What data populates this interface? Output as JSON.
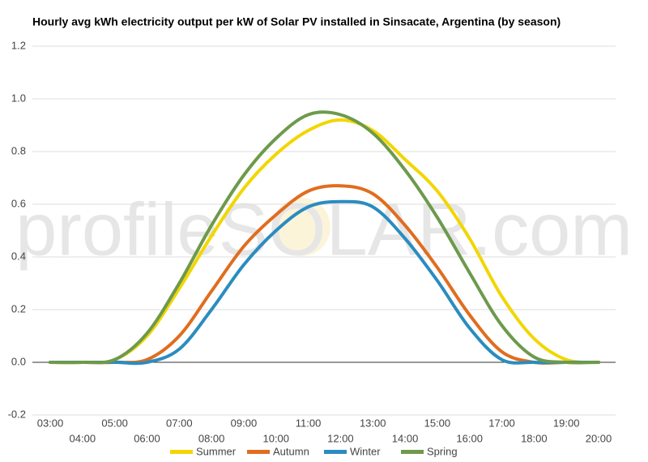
{
  "chart_data": {
    "type": "line",
    "title": "Hourly avg kWh electricity output per kW of Solar PV installed in Sinsacate, Argentina (by season)",
    "watermark": "profileSOLAR.com",
    "categories": [
      "03:00",
      "04:00",
      "05:00",
      "06:00",
      "07:00",
      "08:00",
      "09:00",
      "10:00",
      "11:00",
      "12:00",
      "13:00",
      "14:00",
      "15:00",
      "16:00",
      "17:00",
      "18:00",
      "19:00",
      "20:00"
    ],
    "series": [
      {
        "name": "Summer",
        "color": "#f2d600",
        "values": [
          0,
          0,
          0.01,
          0.1,
          0.28,
          0.48,
          0.66,
          0.79,
          0.88,
          0.92,
          0.88,
          0.77,
          0.65,
          0.47,
          0.25,
          0.09,
          0.01,
          0
        ]
      },
      {
        "name": "Autumn",
        "color": "#e06d1f",
        "values": [
          0,
          0,
          0,
          0.01,
          0.1,
          0.27,
          0.44,
          0.56,
          0.65,
          0.67,
          0.64,
          0.52,
          0.36,
          0.18,
          0.04,
          0,
          0,
          0
        ]
      },
      {
        "name": "Winter",
        "color": "#2b8cbf",
        "values": [
          0,
          0,
          0,
          0,
          0.05,
          0.2,
          0.37,
          0.5,
          0.59,
          0.61,
          0.59,
          0.47,
          0.31,
          0.13,
          0.01,
          0,
          0,
          0
        ]
      },
      {
        "name": "Spring",
        "color": "#6d9a4c",
        "values": [
          0,
          0,
          0.01,
          0.11,
          0.3,
          0.52,
          0.71,
          0.85,
          0.94,
          0.94,
          0.87,
          0.73,
          0.55,
          0.34,
          0.14,
          0.02,
          0,
          0
        ]
      }
    ],
    "ylim": [
      -0.2,
      1.2
    ],
    "yticks": [
      -0.2,
      {
        "value": 0,
        "label": "0.0"
      },
      0.2,
      0.4,
      0.6,
      0.8,
      {
        "value": 1,
        "label": "1.0"
      },
      1.2
    ],
    "grid": true,
    "legend": "bottom"
  }
}
